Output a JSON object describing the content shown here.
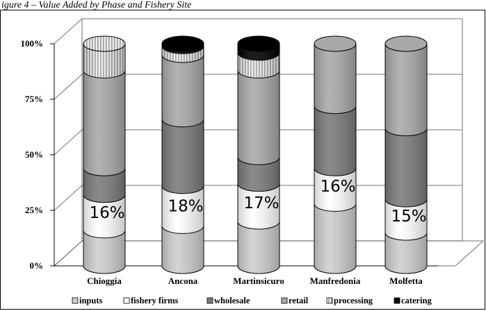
{
  "caption": "igure 4 – Value Added by Phase and Fishery Site",
  "chart_data": {
    "type": "bar",
    "stacked": true,
    "style": "3d-cylinder",
    "categories": [
      "Chioggia",
      "Ancona",
      "Martinsicuro",
      "Manfredonia",
      "Molfetta"
    ],
    "yticks": [
      "0%",
      "25%",
      "50%",
      "75%",
      "100%"
    ],
    "ylim": [
      0,
      100
    ],
    "series": [
      {
        "name": "inputs",
        "values": [
          16,
          18,
          20,
          28,
          15
        ],
        "color": "#cdcdcd",
        "pattern": "none"
      },
      {
        "name": "fishery firms",
        "values": [
          16,
          18,
          17,
          16,
          15
        ],
        "color": "#ffffff",
        "pattern": "none"
      },
      {
        "name": "wholesale",
        "values": [
          12,
          30,
          12,
          28,
          32
        ],
        "color": "#7a7a7a",
        "pattern": "none"
      },
      {
        "name": "retail",
        "values": [
          44,
          29,
          39,
          28,
          38
        ],
        "color": "#a8a8a8",
        "pattern": "none"
      },
      {
        "name": "processing",
        "values": [
          12,
          4,
          8,
          0,
          0
        ],
        "color": "#e3e3e3",
        "pattern": "stripes"
      },
      {
        "name": "catering",
        "values": [
          0,
          1,
          4,
          0,
          0
        ],
        "color": "#000000",
        "pattern": "none"
      }
    ],
    "data_labels": [
      {
        "category": "Chioggia",
        "text": "16%"
      },
      {
        "category": "Ancona",
        "text": "18%"
      },
      {
        "category": "Martinsicuro",
        "text": "17%"
      },
      {
        "category": "Manfredonia",
        "text": "16%"
      },
      {
        "category": "Molfetta",
        "text": "15%"
      }
    ],
    "label_series": "fishery firms",
    "grid": true,
    "legend_position": "bottom"
  }
}
